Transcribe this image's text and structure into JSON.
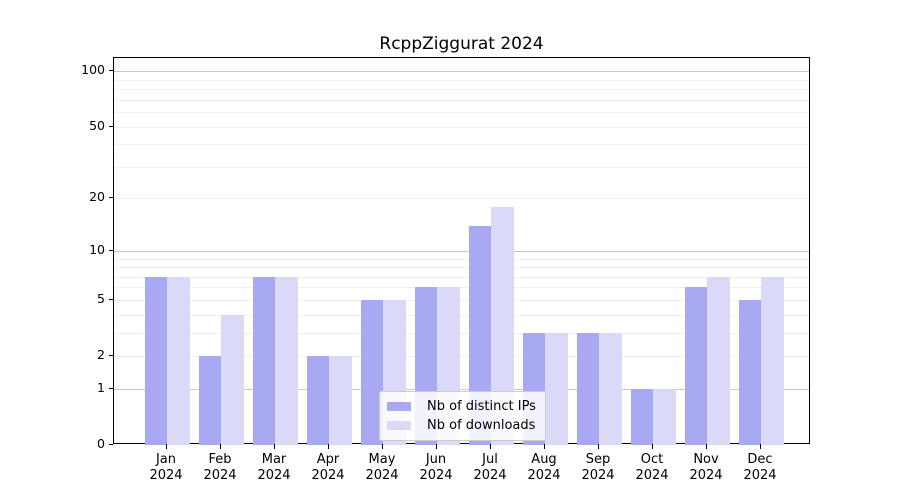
{
  "chart_data": {
    "type": "bar",
    "title": "RcppZiggurat 2024",
    "x_year": "2024",
    "categories": [
      "Jan",
      "Feb",
      "Mar",
      "Apr",
      "May",
      "Jun",
      "Jul",
      "Aug",
      "Sep",
      "Oct",
      "Nov",
      "Dec"
    ],
    "series": [
      {
        "name": "Nb of distinct IPs",
        "color": "#a9a9f3",
        "values": [
          7,
          2,
          7,
          2,
          5,
          6,
          14,
          3,
          3,
          1,
          6,
          5
        ]
      },
      {
        "name": "Nb of downloads",
        "color": "#dadaf8",
        "values": [
          7,
          4,
          7,
          2,
          5,
          6,
          18,
          3,
          3,
          1,
          7,
          7
        ]
      }
    ],
    "y_scale": "log1p",
    "ylim": [
      0,
      118
    ],
    "y_ticks": [
      0,
      1,
      2,
      5,
      10,
      20,
      50,
      100
    ],
    "y_tick_labels": [
      "0",
      "1",
      "2",
      "5",
      "10",
      "20",
      "50",
      "100"
    ],
    "y_major_gridlines": [
      1,
      10,
      100
    ],
    "y_minor_gridlines": [
      2,
      3,
      4,
      5,
      6,
      7,
      8,
      9,
      20,
      30,
      40,
      50,
      60,
      70,
      80,
      90
    ],
    "grid": true,
    "legend_position": "lower-center",
    "colors": {
      "distinct_ips": "#a9a9f3",
      "downloads": "#dadaf8",
      "major_grid": "#c9c9c9",
      "minor_grid": "#efefef",
      "axis": "#000000"
    }
  }
}
